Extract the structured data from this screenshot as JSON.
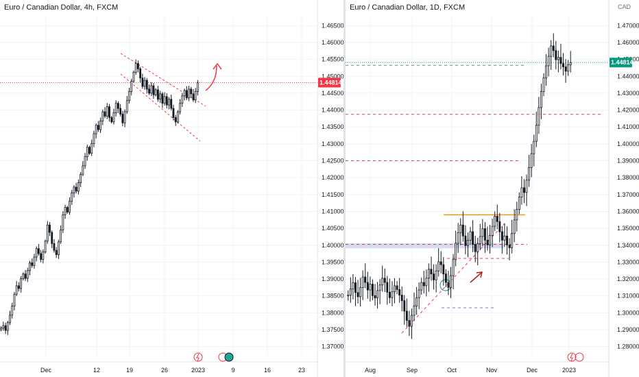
{
  "colors": {
    "up": "#ffffff",
    "down": "#131722",
    "wick": "#131722",
    "last_price_left": "#f23645",
    "last_price_right": "#089981",
    "pattern_red": "#f23645",
    "support_blue": "#b2c3e6",
    "resistance_orange": "#f7931a",
    "dashed_blue": "#5b7ec9"
  },
  "chart_data": [
    {
      "type": "candlestick",
      "title": "Euro / Canadian Dollar, 4h, FXCM",
      "unit": "",
      "y_ticks": [
        "1.46500",
        "1.46000",
        "1.45500",
        "1.45000",
        "1.44500",
        "1.44000",
        "1.43500",
        "1.43000",
        "1.42500",
        "1.42000",
        "1.41500",
        "1.41000",
        "1.40500",
        "1.40000",
        "1.39500",
        "1.39000",
        "1.38500",
        "1.38000",
        "1.37500",
        "1.37000"
      ],
      "x_ticks": [
        "Dec",
        "12",
        "19",
        "26",
        "2023",
        "9",
        "16",
        "23"
      ],
      "ylim": [
        1.3675,
        1.4675
      ],
      "last_price": "1.44814",
      "close_series": [
        1.3755,
        1.3762,
        1.3748,
        1.3771,
        1.3793,
        1.382,
        1.3855,
        1.388,
        1.3872,
        1.3901,
        1.3915,
        1.3902,
        1.3925,
        1.3948,
        1.394,
        1.3965,
        1.399,
        1.3975,
        1.3958,
        1.398,
        1.4012,
        1.406,
        1.4038,
        1.4005,
        1.3985,
        1.3972,
        1.401,
        1.4045,
        1.409,
        1.4112,
        1.4098,
        1.413,
        1.4155,
        1.4172,
        1.416,
        1.4185,
        1.421,
        1.4235,
        1.4262,
        1.429,
        1.4272,
        1.4301,
        1.433,
        1.4355,
        1.4342,
        1.4368,
        1.4395,
        1.4382,
        1.441,
        1.4378,
        1.4365,
        1.4392,
        1.442,
        1.4405,
        1.4388,
        1.4362,
        1.4395,
        1.4428,
        1.4455,
        1.4485,
        1.4512,
        1.4538,
        1.4522,
        1.4495,
        1.447,
        1.4488,
        1.4462,
        1.445,
        1.4472,
        1.4445,
        1.446,
        1.4432,
        1.4448,
        1.442,
        1.444,
        1.4415,
        1.4432,
        1.4405,
        1.4378,
        1.4365,
        1.4395,
        1.442,
        1.4442,
        1.4458,
        1.4436,
        1.4462,
        1.4448,
        1.443,
        1.4455,
        1.4481
      ]
    },
    {
      "type": "candlestick",
      "title": "Euro / Canadian Dollar, 1D, FXCM",
      "unit": "CAD",
      "y_ticks": [
        "1.47000",
        "1.46000",
        "1.45000",
        "1.44000",
        "1.43000",
        "1.42000",
        "1.41000",
        "1.40000",
        "1.39000",
        "1.38000",
        "1.37000",
        "1.36000",
        "1.35000",
        "1.34000",
        "1.33000",
        "1.32000",
        "1.31000",
        "1.30000",
        "1.29000",
        "1.28000"
      ],
      "x_ticks": [
        "Aug",
        "Sep",
        "Oct",
        "Nov",
        "Dec",
        "2023"
      ],
      "ylim": [
        1.275,
        1.475
      ],
      "last_price": "1.44814",
      "close_series": [
        1.3105,
        1.3142,
        1.3178,
        1.312,
        1.3095,
        1.315,
        1.3212,
        1.318,
        1.3135,
        1.317,
        1.3102,
        1.3088,
        1.3132,
        1.3165,
        1.3205,
        1.318,
        1.3122,
        1.309,
        1.3125,
        1.316,
        1.3138,
        1.3105,
        1.3072,
        1.301,
        1.2955,
        1.292,
        1.2985,
        1.304,
        1.309,
        1.3135,
        1.318,
        1.316,
        1.3205,
        1.3258,
        1.323,
        1.3195,
        1.3248,
        1.3302,
        1.3285,
        1.323,
        1.318,
        1.315,
        1.322,
        1.3315,
        1.3412,
        1.3475,
        1.352,
        1.3455,
        1.3398,
        1.343,
        1.348,
        1.3405,
        1.3362,
        1.341,
        1.3452,
        1.3498,
        1.343,
        1.3402,
        1.3458,
        1.3512,
        1.3572,
        1.354,
        1.348,
        1.343,
        1.3455,
        1.3402,
        1.3385,
        1.347,
        1.355,
        1.3612,
        1.3685,
        1.374,
        1.3712,
        1.3785,
        1.386,
        1.3942,
        1.4015,
        1.411,
        1.4215,
        1.431,
        1.439,
        1.4462,
        1.4518,
        1.458,
        1.4552,
        1.4498,
        1.4512,
        1.4475,
        1.4456,
        1.443,
        1.4468,
        1.4481
      ]
    }
  ],
  "overlays": {
    "arrow_icon": "red-curved-arrow-icon",
    "right_arrow_icon": "red-straight-arrow-icon"
  },
  "bottom_icons": {
    "left": [
      "lightning-icon",
      "event-icon",
      "green-circle-icon"
    ],
    "right": [
      "lightning-icon",
      "event-icon"
    ]
  }
}
